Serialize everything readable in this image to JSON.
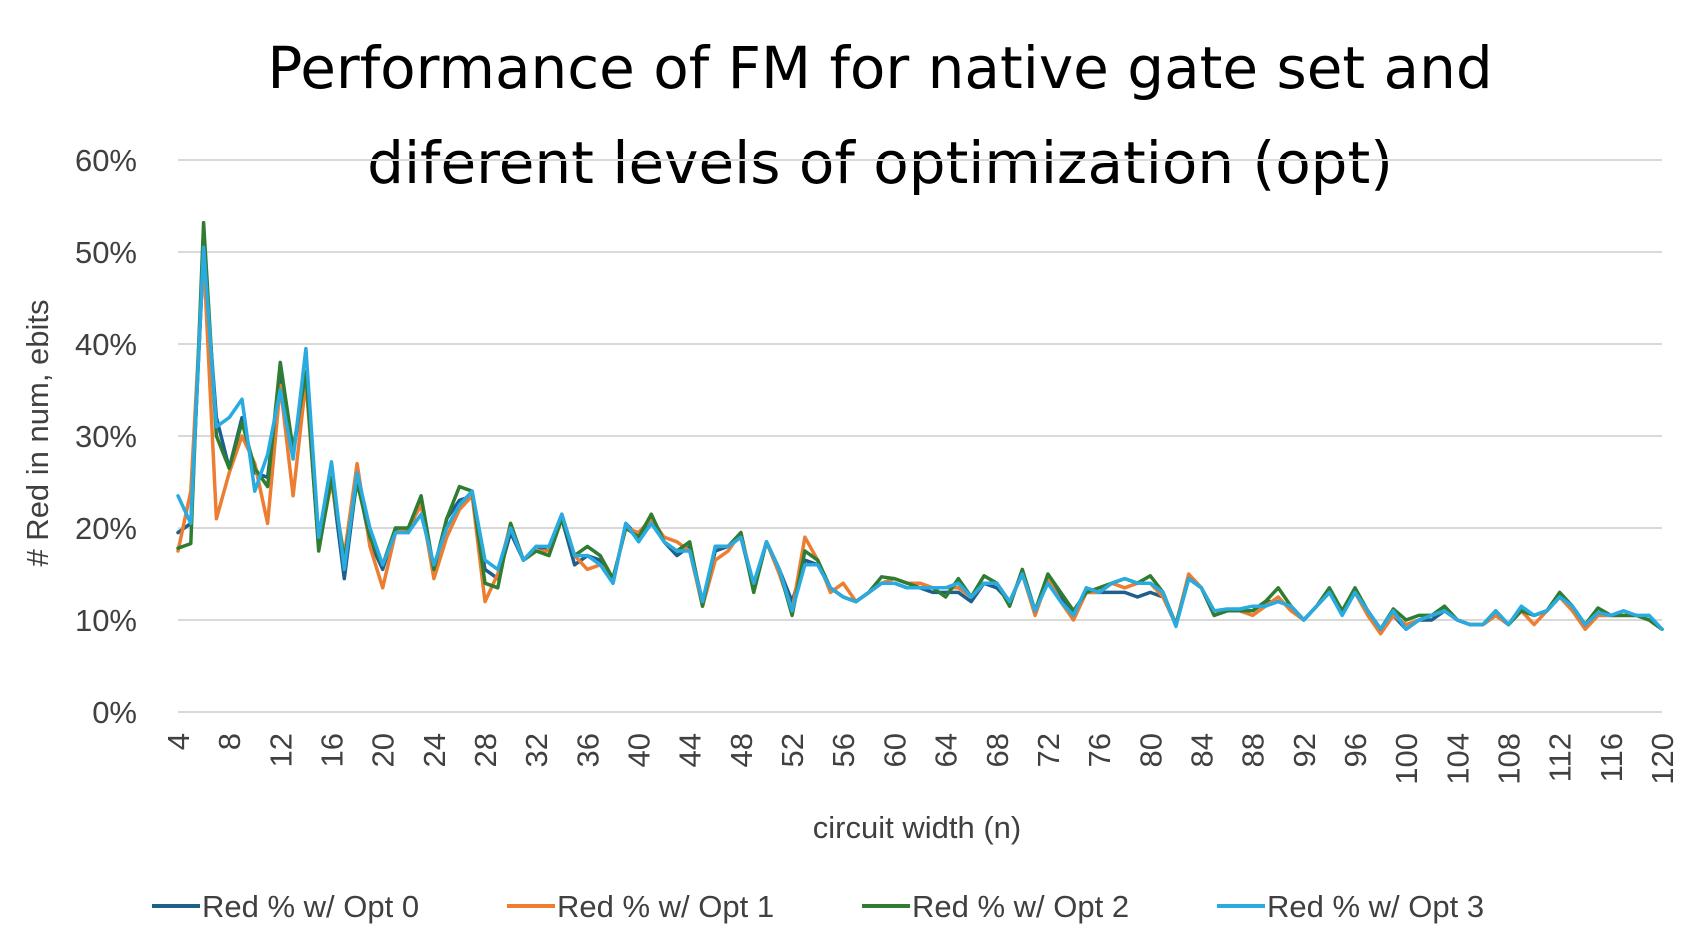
{
  "chart_data": {
    "type": "line",
    "title_lines": [
      "Performance of FM for native gate set and",
      "diferent levels of optimization (opt)"
    ],
    "xlabel": "circuit width (n)",
    "ylabel": "# Red in num, ebits",
    "ylim": [
      0,
      0.6
    ],
    "y_ticks": [
      "0%",
      "10%",
      "20%",
      "30%",
      "40%",
      "50%",
      "60%"
    ],
    "x_ticks": [
      "4",
      "8",
      "12",
      "16",
      "20",
      "24",
      "28",
      "32",
      "36",
      "40",
      "44",
      "48",
      "52",
      "56",
      "60",
      "64",
      "68",
      "72",
      "76",
      "80",
      "84",
      "88",
      "92",
      "96",
      "100",
      "104",
      "108",
      "112",
      "116",
      "120"
    ],
    "grid": true,
    "legend_position": "bottom",
    "x": [
      4,
      5,
      6,
      7,
      8,
      9,
      10,
      11,
      12,
      13,
      14,
      15,
      16,
      17,
      18,
      19,
      20,
      21,
      22,
      23,
      24,
      25,
      26,
      27,
      28,
      29,
      30,
      31,
      32,
      33,
      34,
      35,
      36,
      37,
      38,
      39,
      40,
      41,
      42,
      43,
      44,
      45,
      46,
      47,
      48,
      49,
      50,
      51,
      52,
      53,
      54,
      55,
      56,
      57,
      58,
      59,
      60,
      61,
      62,
      63,
      64,
      65,
      66,
      67,
      68,
      69,
      70,
      71,
      72,
      73,
      74,
      75,
      76,
      77,
      78,
      79,
      80,
      81,
      82,
      83,
      84,
      85,
      86,
      87,
      88,
      89,
      90,
      91,
      92,
      93,
      94,
      95,
      96,
      97,
      98,
      99,
      100,
      101,
      102,
      103,
      104,
      105,
      106,
      107,
      108,
      109,
      110,
      111,
      112,
      113,
      114,
      115,
      116,
      117,
      118,
      119,
      120
    ],
    "series": [
      {
        "name": "Red % w/ Opt 0",
        "color": "#1f5f8b",
        "values": [
          0.195,
          0.205,
          0.5,
          0.32,
          0.265,
          0.32,
          0.26,
          0.255,
          0.365,
          0.28,
          0.37,
          0.18,
          0.255,
          0.145,
          0.255,
          0.185,
          0.155,
          0.2,
          0.195,
          0.23,
          0.155,
          0.21,
          0.23,
          0.235,
          0.155,
          0.145,
          0.195,
          0.165,
          0.18,
          0.175,
          0.21,
          0.16,
          0.17,
          0.165,
          0.14,
          0.205,
          0.19,
          0.21,
          0.185,
          0.17,
          0.18,
          0.12,
          0.175,
          0.18,
          0.19,
          0.135,
          0.185,
          0.155,
          0.12,
          0.165,
          0.16,
          0.135,
          0.125,
          0.12,
          0.13,
          0.14,
          0.14,
          0.135,
          0.135,
          0.13,
          0.13,
          0.13,
          0.12,
          0.14,
          0.135,
          0.12,
          0.15,
          0.11,
          0.145,
          0.125,
          0.105,
          0.13,
          0.13,
          0.13,
          0.13,
          0.125,
          0.13,
          0.125,
          0.095,
          0.145,
          0.135,
          0.105,
          0.11,
          0.11,
          0.11,
          0.12,
          0.12,
          0.115,
          0.1,
          0.115,
          0.13,
          0.11,
          0.13,
          0.11,
          0.09,
          0.105,
          0.09,
          0.1,
          0.1,
          0.11,
          0.1,
          0.095,
          0.095,
          0.105,
          0.095,
          0.11,
          0.105,
          0.11,
          0.125,
          0.115,
          0.095,
          0.105,
          0.105,
          0.105,
          0.105,
          0.1,
          0.09
        ]
      },
      {
        "name": "Red % w/ Opt 1",
        "color": "#ed7d31",
        "values": [
          0.175,
          0.24,
          0.495,
          0.21,
          0.26,
          0.3,
          0.27,
          0.205,
          0.355,
          0.235,
          0.36,
          0.18,
          0.25,
          0.17,
          0.27,
          0.18,
          0.135,
          0.195,
          0.2,
          0.225,
          0.145,
          0.19,
          0.22,
          0.235,
          0.12,
          0.15,
          0.205,
          0.165,
          0.175,
          0.175,
          0.215,
          0.17,
          0.155,
          0.16,
          0.145,
          0.2,
          0.195,
          0.21,
          0.19,
          0.185,
          0.175,
          0.115,
          0.165,
          0.175,
          0.195,
          0.135,
          0.185,
          0.15,
          0.11,
          0.19,
          0.165,
          0.13,
          0.14,
          0.12,
          0.13,
          0.14,
          0.145,
          0.14,
          0.14,
          0.135,
          0.135,
          0.135,
          0.125,
          0.14,
          0.14,
          0.12,
          0.15,
          0.105,
          0.145,
          0.12,
          0.1,
          0.13,
          0.13,
          0.14,
          0.135,
          0.14,
          0.14,
          0.125,
          0.095,
          0.15,
          0.135,
          0.11,
          0.11,
          0.11,
          0.105,
          0.115,
          0.125,
          0.11,
          0.1,
          0.115,
          0.13,
          0.11,
          0.13,
          0.105,
          0.085,
          0.105,
          0.095,
          0.1,
          0.105,
          0.11,
          0.1,
          0.095,
          0.095,
          0.105,
          0.095,
          0.11,
          0.095,
          0.11,
          0.125,
          0.11,
          0.09,
          0.105,
          0.105,
          0.105,
          0.105,
          0.1,
          0.09
        ]
      },
      {
        "name": "Red % w/ Opt 2",
        "color": "#2e7d32",
        "values": [
          0.178,
          0.183,
          0.532,
          0.3,
          0.265,
          0.315,
          0.265,
          0.245,
          0.38,
          0.285,
          0.37,
          0.175,
          0.255,
          0.165,
          0.25,
          0.19,
          0.16,
          0.2,
          0.2,
          0.235,
          0.155,
          0.21,
          0.245,
          0.24,
          0.14,
          0.135,
          0.205,
          0.165,
          0.175,
          0.17,
          0.21,
          0.17,
          0.18,
          0.17,
          0.145,
          0.2,
          0.19,
          0.215,
          0.185,
          0.175,
          0.185,
          0.115,
          0.18,
          0.18,
          0.195,
          0.13,
          0.185,
          0.155,
          0.105,
          0.175,
          0.165,
          0.135,
          0.125,
          0.12,
          0.13,
          0.147,
          0.145,
          0.14,
          0.135,
          0.135,
          0.125,
          0.145,
          0.125,
          0.148,
          0.14,
          0.115,
          0.155,
          0.11,
          0.15,
          0.13,
          0.11,
          0.13,
          0.135,
          0.14,
          0.145,
          0.14,
          0.148,
          0.13,
          0.095,
          0.145,
          0.135,
          0.105,
          0.11,
          0.11,
          0.11,
          0.12,
          0.135,
          0.115,
          0.1,
          0.115,
          0.135,
          0.11,
          0.135,
          0.11,
          0.09,
          0.112,
          0.1,
          0.105,
          0.105,
          0.115,
          0.1,
          0.095,
          0.095,
          0.11,
          0.095,
          0.11,
          0.105,
          0.11,
          0.13,
          0.115,
          0.095,
          0.113,
          0.105,
          0.105,
          0.105,
          0.1,
          0.09
        ]
      },
      {
        "name": "Red % w/ Opt 3",
        "color": "#29abe2",
        "values": [
          0.235,
          0.205,
          0.505,
          0.31,
          0.32,
          0.34,
          0.24,
          0.28,
          0.35,
          0.275,
          0.395,
          0.19,
          0.272,
          0.155,
          0.26,
          0.2,
          0.16,
          0.195,
          0.195,
          0.215,
          0.16,
          0.2,
          0.225,
          0.24,
          0.165,
          0.155,
          0.2,
          0.165,
          0.18,
          0.18,
          0.215,
          0.17,
          0.17,
          0.16,
          0.14,
          0.205,
          0.185,
          0.205,
          0.185,
          0.175,
          0.175,
          0.12,
          0.18,
          0.18,
          0.19,
          0.14,
          0.185,
          0.155,
          0.11,
          0.16,
          0.16,
          0.135,
          0.125,
          0.12,
          0.13,
          0.14,
          0.14,
          0.135,
          0.135,
          0.135,
          0.135,
          0.14,
          0.125,
          0.14,
          0.14,
          0.12,
          0.15,
          0.11,
          0.14,
          0.12,
          0.105,
          0.135,
          0.13,
          0.14,
          0.145,
          0.14,
          0.14,
          0.13,
          0.093,
          0.145,
          0.135,
          0.11,
          0.112,
          0.112,
          0.115,
          0.115,
          0.12,
          0.115,
          0.1,
          0.115,
          0.13,
          0.105,
          0.13,
          0.11,
          0.09,
          0.11,
          0.09,
          0.1,
          0.105,
          0.11,
          0.1,
          0.095,
          0.095,
          0.11,
          0.095,
          0.115,
          0.105,
          0.11,
          0.125,
          0.115,
          0.095,
          0.108,
          0.105,
          0.11,
          0.105,
          0.105,
          0.09
        ]
      }
    ]
  }
}
